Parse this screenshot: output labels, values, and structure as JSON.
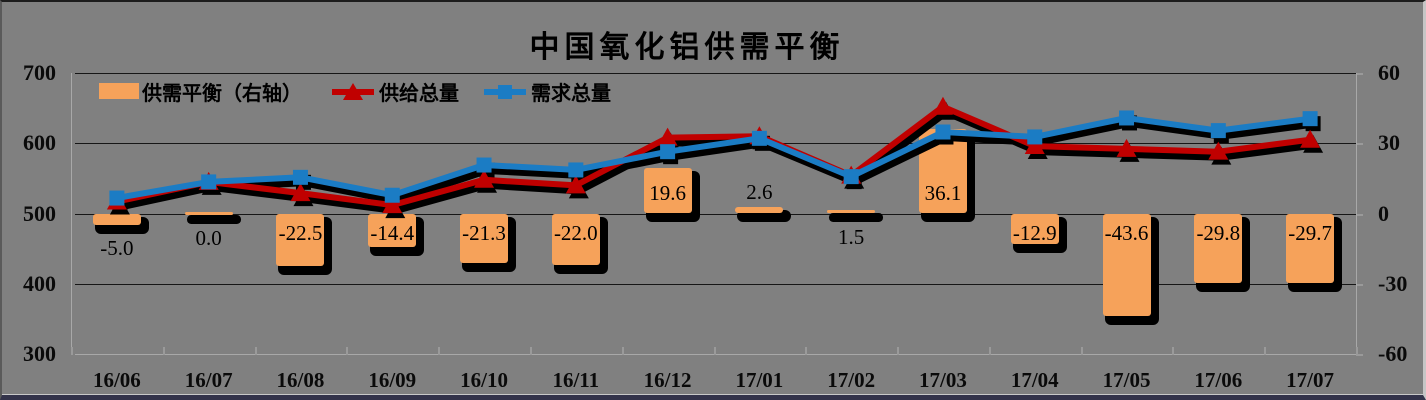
{
  "title": "中国氧化铝供需平衡",
  "colors": {
    "background": "#808080",
    "bar_orange": "#F6A25A",
    "supply_red": "#C00000",
    "demand_blue": "#1B7CC4",
    "shadow_black": "#000000"
  },
  "legend": [
    {
      "label": "供需平衡（右轴）",
      "type": "bar"
    },
    {
      "label": "供给总量",
      "type": "line-triangle"
    },
    {
      "label": "需求总量",
      "type": "line-square"
    }
  ],
  "left_axis": {
    "ticks": [
      700,
      600,
      500,
      400,
      300
    ],
    "min": 300,
    "max": 700
  },
  "right_axis": {
    "ticks": [
      60,
      30,
      0,
      -30,
      -60
    ],
    "min": -60,
    "max": 60
  },
  "chart_data": {
    "type": "combo",
    "title": "中国氧化铝供需平衡",
    "categories": [
      "16/06",
      "16/07",
      "16/08",
      "16/09",
      "16/10",
      "16/11",
      "16/12",
      "17/01",
      "17/02",
      "17/03",
      "17/04",
      "17/05",
      "17/06",
      "17/07"
    ],
    "left_axis_range": [
      300,
      700
    ],
    "right_axis_range": [
      -60,
      60
    ],
    "grid": true,
    "legend_position": "top",
    "series": [
      {
        "name": "供需平衡（右轴）",
        "type": "bar",
        "axis": "right",
        "values": [
          -5.0,
          0.0,
          -22.5,
          -14.4,
          -21.3,
          -22.0,
          19.6,
          2.6,
          1.5,
          36.1,
          -12.9,
          -43.6,
          -29.8,
          -29.7
        ],
        "labels": [
          {
            "text": "-5.0",
            "pos": "below",
            "behind": true
          },
          {
            "text": "0.0",
            "pos": "below"
          },
          {
            "text": "-22.5",
            "pos": "inside"
          },
          {
            "text": "-14.4",
            "pos": "inside"
          },
          {
            "text": "-21.3",
            "pos": "inside"
          },
          {
            "text": "-22.0",
            "pos": "inside"
          },
          {
            "text": "19.6",
            "pos": "inside"
          },
          {
            "text": "2.6",
            "pos": "above"
          },
          {
            "text": "1.5",
            "pos": "below"
          },
          {
            "text": "36.1",
            "pos": "inside"
          },
          {
            "text": "-12.9",
            "pos": "inside"
          },
          {
            "text": "-43.6",
            "pos": "inside"
          },
          {
            "text": "-29.8",
            "pos": "inside"
          },
          {
            "text": "-29.7",
            "pos": "inside"
          }
        ]
      },
      {
        "name": "供给总量",
        "type": "line",
        "axis": "left",
        "marker": "triangle",
        "estimated_from_pixels": true,
        "values": [
          517,
          545,
          529,
          512,
          548,
          540,
          608,
          610,
          554,
          652,
          596,
          592,
          588,
          605
        ]
      },
      {
        "name": "需求总量",
        "type": "line",
        "axis": "left",
        "marker": "square",
        "estimated_from_pixels": true,
        "values": [
          522,
          545,
          551.5,
          526,
          569,
          562,
          588,
          607,
          552.5,
          616,
          609,
          636,
          618,
          635
        ]
      }
    ]
  }
}
